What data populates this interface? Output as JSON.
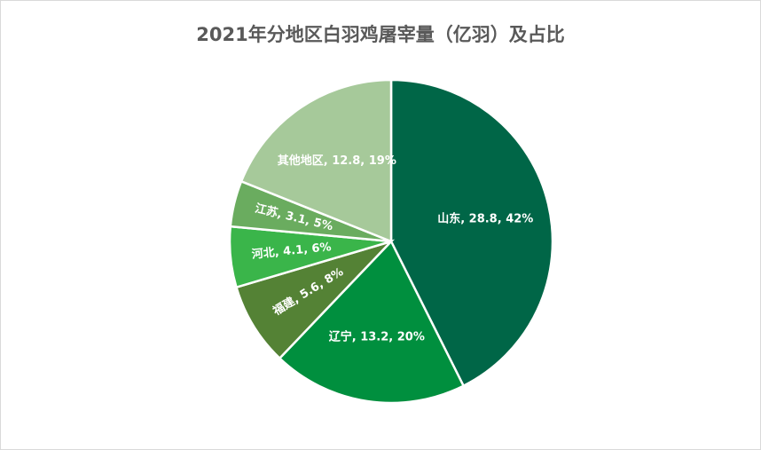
{
  "chart_data": {
    "type": "pie",
    "title": "2021年分地区白羽鸡屠宰量（亿羽）及占比",
    "start_angle_deg": 0,
    "direction": "clockwise",
    "slices": [
      {
        "name": "山东",
        "value": 28.8,
        "percent": "42%",
        "label": "山东, 28.8, 42%",
        "color": "#006647"
      },
      {
        "name": "辽宁",
        "value": 13.2,
        "percent": "20%",
        "label": "辽宁, 13.2, 20%",
        "color": "#008f3e"
      },
      {
        "name": "福建",
        "value": 5.6,
        "percent": "8%",
        "label": "福建, 5.6, 8%",
        "color": "#548235"
      },
      {
        "name": "河北",
        "value": 4.1,
        "percent": "6%",
        "label": "河北, 4.1, 6%",
        "color": "#3ab54a"
      },
      {
        "name": "江苏",
        "value": 3.1,
        "percent": "5%",
        "label": "江苏, 3.1, 5%",
        "color": "#6aac5f"
      },
      {
        "name": "其他地区",
        "value": 12.8,
        "percent": "19%",
        "label": "其他地区, 12.8, 19%",
        "color": "#a6c99a"
      }
    ]
  }
}
